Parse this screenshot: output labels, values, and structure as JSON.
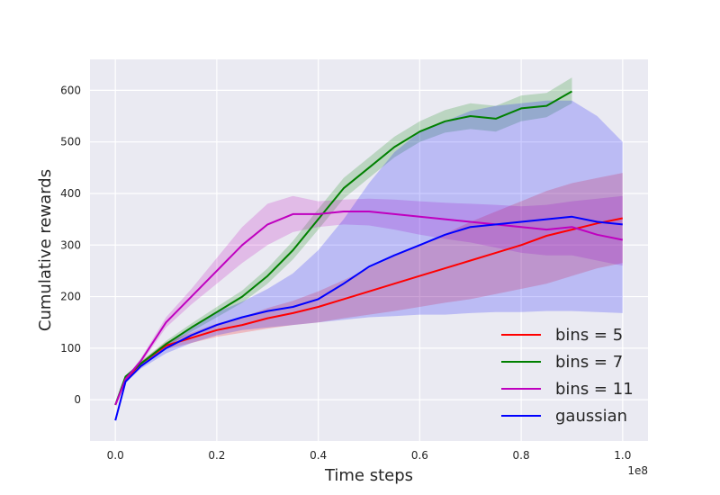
{
  "chart_data": {
    "type": "line",
    "xlabel": "Time steps",
    "ylabel": "Cumulative rewards",
    "x_multiplier_label": "1e8",
    "xlim": [
      -0.05,
      1.05
    ],
    "ylim": [
      -80,
      660
    ],
    "xticks": [
      0.0,
      0.2,
      0.4,
      0.6,
      0.8,
      1.0
    ],
    "xtick_labels": [
      "0.0",
      "0.2",
      "0.4",
      "0.6",
      "0.8",
      "1.0"
    ],
    "yticks": [
      0,
      100,
      200,
      300,
      400,
      500,
      600
    ],
    "ytick_labels": [
      "0",
      "100",
      "200",
      "300",
      "400",
      "500",
      "600"
    ],
    "grid": true,
    "legend_position": "lower-right",
    "background": "#eaeaf2",
    "series": [
      {
        "name": "bins = 5",
        "color": "#ff0000",
        "x": [
          0.0,
          0.02,
          0.05,
          0.1,
          0.15,
          0.2,
          0.25,
          0.3,
          0.35,
          0.4,
          0.45,
          0.5,
          0.55,
          0.6,
          0.65,
          0.7,
          0.75,
          0.8,
          0.85,
          0.9,
          0.95,
          1.0
        ],
        "y": [
          -10,
          40,
          70,
          105,
          120,
          135,
          145,
          158,
          168,
          180,
          195,
          210,
          225,
          240,
          255,
          270,
          285,
          300,
          318,
          330,
          342,
          352
        ],
        "lower": [
          -10,
          38,
          66,
          98,
          110,
          122,
          130,
          138,
          145,
          150,
          158,
          165,
          172,
          180,
          188,
          195,
          205,
          215,
          225,
          240,
          255,
          265
        ],
        "upper": [
          -10,
          42,
          74,
          112,
          130,
          148,
          160,
          178,
          192,
          210,
          232,
          255,
          278,
          300,
          322,
          345,
          365,
          385,
          405,
          420,
          430,
          440
        ]
      },
      {
        "name": "bins = 7",
        "color": "#008000",
        "x": [
          0.0,
          0.02,
          0.05,
          0.1,
          0.15,
          0.2,
          0.25,
          0.3,
          0.35,
          0.4,
          0.45,
          0.5,
          0.55,
          0.6,
          0.65,
          0.7,
          0.75,
          0.8,
          0.85,
          0.9
        ],
        "y": [
          -10,
          45,
          70,
          108,
          140,
          170,
          200,
          240,
          290,
          350,
          410,
          450,
          490,
          520,
          540,
          550,
          545,
          565,
          570,
          598
        ],
        "lower": [
          -10,
          43,
          66,
          102,
          132,
          160,
          188,
          225,
          272,
          330,
          390,
          430,
          470,
          500,
          518,
          525,
          520,
          540,
          548,
          575
        ],
        "upper": [
          -10,
          47,
          74,
          114,
          148,
          180,
          212,
          255,
          308,
          370,
          430,
          470,
          510,
          540,
          562,
          575,
          570,
          590,
          595,
          625
        ]
      },
      {
        "name": "bins = 11",
        "color": "#bf00bf",
        "x": [
          0.0,
          0.02,
          0.05,
          0.1,
          0.15,
          0.2,
          0.25,
          0.3,
          0.35,
          0.4,
          0.45,
          0.5,
          0.55,
          0.6,
          0.65,
          0.7,
          0.75,
          0.8,
          0.85,
          0.9,
          0.95,
          1.0
        ],
        "y": [
          -10,
          40,
          75,
          150,
          200,
          250,
          300,
          340,
          360,
          360,
          365,
          365,
          360,
          355,
          350,
          345,
          340,
          335,
          330,
          335,
          320,
          310
        ],
        "lower": [
          -10,
          38,
          70,
          140,
          185,
          225,
          265,
          300,
          325,
          335,
          340,
          338,
          330,
          320,
          312,
          305,
          295,
          285,
          280,
          280,
          270,
          260
        ],
        "upper": [
          -10,
          42,
          80,
          160,
          215,
          275,
          335,
          380,
          395,
          385,
          388,
          390,
          388,
          385,
          382,
          380,
          378,
          375,
          378,
          385,
          390,
          395
        ]
      },
      {
        "name": "gaussian",
        "color": "#0000ff",
        "x": [
          0.0,
          0.02,
          0.05,
          0.1,
          0.15,
          0.2,
          0.25,
          0.3,
          0.35,
          0.4,
          0.45,
          0.5,
          0.55,
          0.6,
          0.65,
          0.7,
          0.75,
          0.8,
          0.85,
          0.9,
          0.95,
          1.0
        ],
        "y": [
          -40,
          35,
          65,
          100,
          125,
          145,
          160,
          172,
          180,
          195,
          225,
          258,
          280,
          300,
          320,
          335,
          340,
          345,
          350,
          355,
          345,
          340
        ],
        "lower": [
          -40,
          33,
          60,
          90,
          110,
          125,
          135,
          140,
          145,
          150,
          155,
          160,
          162,
          165,
          165,
          168,
          170,
          170,
          172,
          172,
          170,
          168
        ],
        "upper": [
          -40,
          37,
          70,
          110,
          140,
          170,
          190,
          215,
          245,
          290,
          350,
          420,
          480,
          520,
          540,
          560,
          570,
          575,
          580,
          580,
          550,
          500
        ]
      }
    ]
  }
}
